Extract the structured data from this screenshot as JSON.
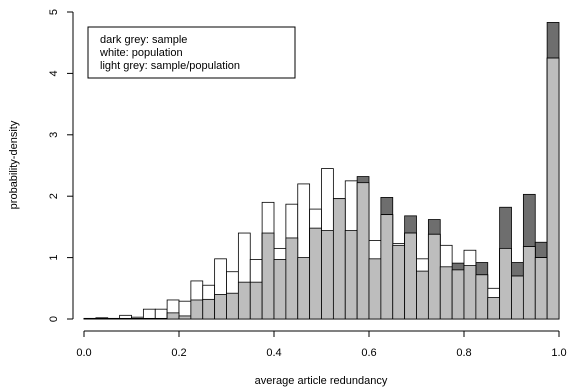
{
  "chart_data": {
    "type": "bar",
    "xlabel": "average article redundancy",
    "ylabel": "probability-density",
    "xlim": [
      0.0,
      1.0
    ],
    "ylim": [
      0,
      5
    ],
    "x_ticks": [
      "0.0",
      "0.2",
      "0.4",
      "0.6",
      "0.8",
      "1.0"
    ],
    "y_ticks": [
      "0",
      "1",
      "2",
      "3",
      "4",
      "5"
    ],
    "grid": false,
    "legend_position": "top-left",
    "legend": [
      "dark grey: sample",
      "white: population",
      "light grey: sample/population"
    ],
    "bin_width": 0.025,
    "bin_starts": [
      0.0,
      0.025,
      0.05,
      0.075,
      0.1,
      0.125,
      0.15,
      0.175,
      0.2,
      0.225,
      0.25,
      0.275,
      0.3,
      0.325,
      0.35,
      0.375,
      0.4,
      0.425,
      0.45,
      0.475,
      0.5,
      0.525,
      0.55,
      0.575,
      0.6,
      0.625,
      0.65,
      0.675,
      0.7,
      0.725,
      0.75,
      0.775,
      0.8,
      0.825,
      0.85,
      0.875,
      0.9,
      0.925,
      0.95,
      0.975
    ],
    "series": [
      {
        "name": "sample",
        "color": "#6e6e6e",
        "values": [
          0.01,
          0.01,
          0.01,
          0.01,
          0.01,
          0.01,
          0.01,
          0.1,
          0.05,
          0.35,
          0.32,
          0.4,
          0.42,
          0.6,
          0.6,
          1.4,
          1.05,
          1.32,
          1.0,
          1.5,
          1.47,
          1.96,
          1.46,
          2.32,
          0.98,
          1.98,
          1.2,
          1.68,
          0.78,
          1.62,
          0.85,
          0.91,
          0.87,
          0.92,
          0.35,
          1.82,
          0.92,
          2.03,
          1.25,
          4.83
        ]
      },
      {
        "name": "population",
        "color": "#ffffff",
        "values": [
          0.01,
          0.02,
          0.01,
          0.06,
          0.03,
          0.16,
          0.16,
          0.31,
          0.29,
          0.62,
          0.55,
          0.98,
          0.77,
          1.4,
          0.97,
          1.9,
          1.15,
          1.87,
          2.2,
          1.79,
          2.45,
          1.45,
          2.25,
          1.45,
          1.28,
          1.7,
          1.23,
          1.4,
          0.98,
          1.38,
          1.2,
          0.8,
          1.12,
          0.72,
          0.5,
          1.15,
          0.7,
          1.18,
          1.0,
          4.25
        ]
      },
      {
        "name": "sample/population",
        "color": "#bdbdbd",
        "values": [
          0.01,
          0.01,
          0.01,
          0.01,
          0.01,
          0.01,
          0.01,
          0.1,
          0.05,
          0.31,
          0.32,
          0.4,
          0.42,
          0.6,
          0.6,
          1.4,
          0.97,
          1.32,
          1.0,
          1.48,
          1.44,
          1.96,
          1.44,
          2.22,
          0.98,
          1.7,
          1.2,
          1.4,
          0.78,
          1.38,
          0.85,
          0.8,
          0.87,
          0.72,
          0.35,
          1.15,
          0.7,
          1.18,
          1.0,
          4.25
        ]
      }
    ]
  }
}
